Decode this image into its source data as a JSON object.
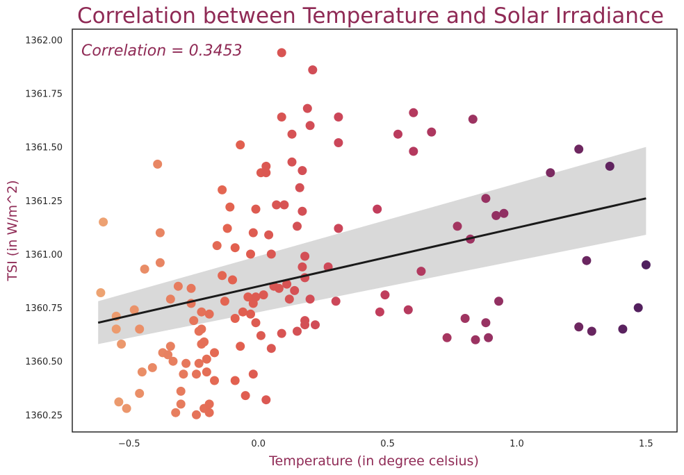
{
  "chart_data": {
    "type": "scatter",
    "title": "Correlation between Temperature and Solar Irradiance",
    "xlabel": "Temperature (in degree celsius)",
    "ylabel": "TSI (in W/m^2)",
    "annotation": "Correlation = 0.3453",
    "xlim": [
      -0.72,
      1.62
    ],
    "ylim": [
      1360.17,
      1362.05
    ],
    "x_ticks": [
      -0.5,
      0.0,
      0.5,
      1.0,
      1.5
    ],
    "x_tick_labels": [
      "−0.5",
      "0.0",
      "0.5",
      "1.0",
      "1.5"
    ],
    "y_ticks": [
      1360.25,
      1360.5,
      1360.75,
      1361.0,
      1361.25,
      1361.5,
      1361.75,
      1362.0
    ],
    "y_tick_labels": [
      "1360.25",
      "1360.50",
      "1360.75",
      "1361.00",
      "1361.25",
      "1361.50",
      "1361.75",
      "1362.00"
    ],
    "grid": false,
    "regression": {
      "x": [
        -0.62,
        1.5
      ],
      "y": [
        1360.68,
        1361.26
      ],
      "ci_lower": [
        1360.58,
        1361.09
      ],
      "ci_upper": [
        1360.78,
        1361.5
      ]
    },
    "colors": {
      "line": "#1a1a1a",
      "ci_band": "#d9d9d9",
      "palette": [
        "#eda473",
        "#e2604f",
        "#c43e5c",
        "#8e2f63",
        "#4f1f5e"
      ]
    },
    "points": [
      [
        -0.61,
        1360.82
      ],
      [
        -0.6,
        1361.15
      ],
      [
        -0.55,
        1360.65
      ],
      [
        -0.55,
        1360.71
      ],
      [
        -0.54,
        1360.31
      ],
      [
        -0.53,
        1360.58
      ],
      [
        -0.51,
        1360.28
      ],
      [
        -0.48,
        1360.74
      ],
      [
        -0.46,
        1360.65
      ],
      [
        -0.46,
        1360.35
      ],
      [
        -0.45,
        1360.45
      ],
      [
        -0.44,
        1360.93
      ],
      [
        -0.41,
        1360.47
      ],
      [
        -0.39,
        1361.42
      ],
      [
        -0.38,
        1361.1
      ],
      [
        -0.38,
        1360.96
      ],
      [
        -0.37,
        1360.54
      ],
      [
        -0.35,
        1360.53
      ],
      [
        -0.34,
        1360.57
      ],
      [
        -0.34,
        1360.79
      ],
      [
        -0.33,
        1360.5
      ],
      [
        -0.32,
        1360.26
      ],
      [
        -0.31,
        1360.85
      ],
      [
        -0.3,
        1360.36
      ],
      [
        -0.3,
        1360.3
      ],
      [
        -0.29,
        1360.44
      ],
      [
        -0.28,
        1360.49
      ],
      [
        -0.26,
        1360.84
      ],
      [
        -0.26,
        1360.77
      ],
      [
        -0.25,
        1360.69
      ],
      [
        -0.24,
        1360.25
      ],
      [
        -0.24,
        1360.44
      ],
      [
        -0.23,
        1360.64
      ],
      [
        -0.23,
        1360.49
      ],
      [
        -0.22,
        1360.73
      ],
      [
        -0.22,
        1360.58
      ],
      [
        -0.22,
        1360.65
      ],
      [
        -0.21,
        1360.59
      ],
      [
        -0.21,
        1360.28
      ],
      [
        -0.2,
        1360.45
      ],
      [
        -0.2,
        1360.51
      ],
      [
        -0.19,
        1360.72
      ],
      [
        -0.19,
        1360.26
      ],
      [
        -0.19,
        1360.3
      ],
      [
        -0.17,
        1360.41
      ],
      [
        -0.17,
        1360.54
      ],
      [
        -0.16,
        1361.04
      ],
      [
        -0.14,
        1361.3
      ],
      [
        -0.14,
        1360.9
      ],
      [
        -0.13,
        1360.78
      ],
      [
        -0.12,
        1361.12
      ],
      [
        -0.11,
        1361.22
      ],
      [
        -0.1,
        1360.88
      ],
      [
        -0.09,
        1360.7
      ],
      [
        -0.09,
        1361.03
      ],
      [
        -0.09,
        1360.41
      ],
      [
        -0.07,
        1361.51
      ],
      [
        -0.07,
        1360.57
      ],
      [
        -0.06,
        1360.73
      ],
      [
        -0.05,
        1360.34
      ],
      [
        -0.04,
        1360.8
      ],
      [
        -0.03,
        1360.72
      ],
      [
        -0.03,
        1361.0
      ],
      [
        -0.02,
        1360.44
      ],
      [
        -0.02,
        1361.1
      ],
      [
        -0.02,
        1360.77
      ],
      [
        -0.01,
        1360.8
      ],
      [
        -0.01,
        1361.21
      ],
      [
        -0.01,
        1360.68
      ],
      [
        0.01,
        1361.38
      ],
      [
        0.01,
        1360.62
      ],
      [
        0.02,
        1360.81
      ],
      [
        0.03,
        1361.38
      ],
      [
        0.03,
        1361.41
      ],
      [
        0.03,
        1360.32
      ],
      [
        0.04,
        1361.09
      ],
      [
        0.05,
        1360.56
      ],
      [
        0.05,
        1361.0
      ],
      [
        0.06,
        1360.85
      ],
      [
        0.07,
        1361.23
      ],
      [
        0.08,
        1360.84
      ],
      [
        0.09,
        1361.94
      ],
      [
        0.09,
        1361.64
      ],
      [
        0.09,
        1360.63
      ],
      [
        0.1,
        1361.23
      ],
      [
        0.11,
        1360.86
      ],
      [
        0.12,
        1360.79
      ],
      [
        0.13,
        1361.56
      ],
      [
        0.13,
        1361.43
      ],
      [
        0.14,
        1360.83
      ],
      [
        0.15,
        1361.13
      ],
      [
        0.15,
        1360.64
      ],
      [
        0.16,
        1361.31
      ],
      [
        0.17,
        1361.2
      ],
      [
        0.17,
        1360.94
      ],
      [
        0.17,
        1361.39
      ],
      [
        0.18,
        1360.69
      ],
      [
        0.18,
        1360.99
      ],
      [
        0.18,
        1360.89
      ],
      [
        0.18,
        1360.67
      ],
      [
        0.19,
        1361.68
      ],
      [
        0.2,
        1361.6
      ],
      [
        0.2,
        1360.79
      ],
      [
        0.21,
        1361.86
      ],
      [
        0.22,
        1360.67
      ],
      [
        0.27,
        1360.94
      ],
      [
        0.3,
        1360.78
      ],
      [
        0.31,
        1361.64
      ],
      [
        0.31,
        1361.52
      ],
      [
        0.31,
        1361.12
      ],
      [
        0.46,
        1361.21
      ],
      [
        0.47,
        1360.73
      ],
      [
        0.49,
        1360.81
      ],
      [
        0.54,
        1361.56
      ],
      [
        0.58,
        1360.74
      ],
      [
        0.6,
        1361.66
      ],
      [
        0.6,
        1361.48
      ],
      [
        0.63,
        1360.92
      ],
      [
        0.67,
        1361.57
      ],
      [
        0.73,
        1360.61
      ],
      [
        0.77,
        1361.13
      ],
      [
        0.8,
        1360.7
      ],
      [
        0.82,
        1361.07
      ],
      [
        0.83,
        1361.63
      ],
      [
        0.84,
        1360.6
      ],
      [
        0.88,
        1361.26
      ],
      [
        0.88,
        1360.68
      ],
      [
        0.89,
        1360.61
      ],
      [
        0.92,
        1361.18
      ],
      [
        0.93,
        1360.78
      ],
      [
        0.95,
        1361.19
      ],
      [
        1.13,
        1361.38
      ],
      [
        1.24,
        1361.49
      ],
      [
        1.24,
        1360.66
      ],
      [
        1.27,
        1360.97
      ],
      [
        1.29,
        1360.64
      ],
      [
        1.36,
        1361.41
      ],
      [
        1.41,
        1360.65
      ],
      [
        1.47,
        1360.75
      ],
      [
        1.5,
        1360.95
      ]
    ]
  }
}
